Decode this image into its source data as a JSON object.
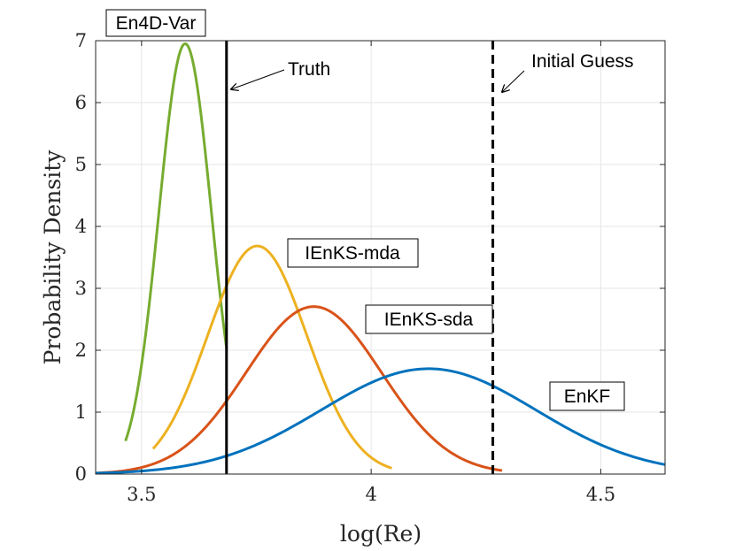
{
  "chart_data": {
    "type": "line",
    "xlabel": "log(Re)",
    "ylabel": "Probability Density",
    "xlim": [
      3.4,
      4.64
    ],
    "ylim": [
      0,
      7
    ],
    "xticks": [
      3.5,
      4.0,
      4.5
    ],
    "xtick_labels": [
      "3.5",
      "4",
      "4.5"
    ],
    "yticks": [
      0,
      1,
      2,
      3,
      4,
      5,
      6,
      7
    ],
    "ytick_labels": [
      "0",
      "1",
      "2",
      "3",
      "4",
      "5",
      "6",
      "7"
    ],
    "grid": true,
    "series": [
      {
        "name": "En4D-Var",
        "color": "#77ac30",
        "mean": 3.595,
        "std": 0.0574,
        "x_range": [
          3.465,
          3.685
        ]
      },
      {
        "name": "IEnKS-mda",
        "color": "#edb120",
        "mean": 3.752,
        "std": 0.1083,
        "x_range": [
          3.525,
          4.045
        ]
      },
      {
        "name": "IEnKS-sda",
        "color": "#d95319",
        "mean": 3.875,
        "std": 0.1475,
        "x_range": [
          3.4,
          4.285
        ]
      },
      {
        "name": "EnKF",
        "color": "#0072bd",
        "mean": 4.125,
        "std": 0.2345,
        "x_range": [
          3.4,
          4.64
        ]
      }
    ],
    "reference_lines": [
      {
        "name": "Truth",
        "x": 3.685,
        "style": "solid",
        "color": "#000000"
      },
      {
        "name": "Initial Guess",
        "x": 4.265,
        "style": "dashed",
        "color": "#000000"
      }
    ]
  },
  "labels": {
    "en4dvar": "En4D-Var",
    "ienks_mda": "IEnKS-mda",
    "ienks_sda": "IEnKS-sda",
    "enkf": "EnKF",
    "truth": "Truth",
    "initial_guess": "Initial Guess"
  }
}
